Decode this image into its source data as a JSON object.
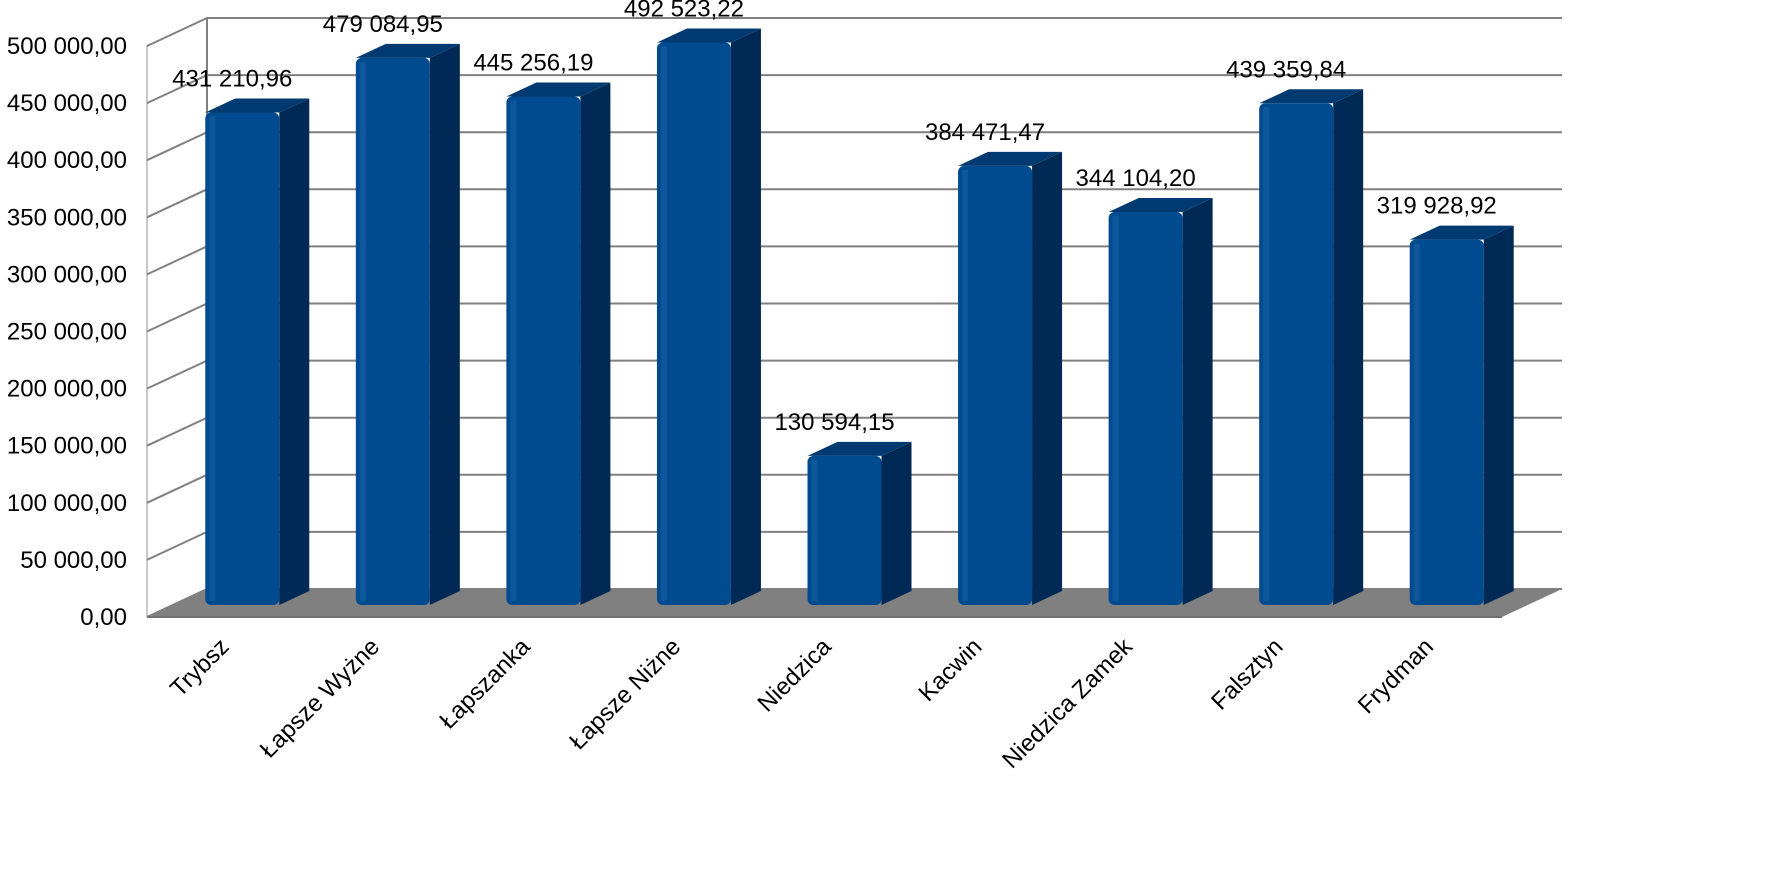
{
  "chart_data": {
    "type": "bar",
    "title": "",
    "xlabel": "",
    "ylabel": "",
    "categories": [
      "Trybsz",
      "Łapsze Wyżne",
      "Łapszanka",
      "Łapsze Niżne",
      "Niedzica",
      "Kacwin",
      "Niedzica Zamek",
      "Falsztyn",
      "Frydman"
    ],
    "values": [
      431210.96,
      479084.95,
      445256.19,
      492523.22,
      130594.15,
      384471.47,
      344104.2,
      439359.84,
      319928.92
    ],
    "value_labels": [
      "431 210,96",
      "479 084,95",
      "445 256,19",
      "492 523,22",
      "130 594,15",
      "384 471,47",
      "344 104,20",
      "439 359,84",
      "319 928,92"
    ],
    "ylim": [
      0,
      500000
    ],
    "y_ticks": [
      "0,00",
      "50 000,00",
      "100 000,00",
      "150 000,00",
      "200 000,00",
      "250 000,00",
      "300 000,00",
      "350 000,00",
      "400 000,00",
      "450 000,00",
      "500 000,00"
    ],
    "grid": true,
    "legend": "none",
    "style": "3d-column",
    "colors": {
      "bar_front": "#004a8f",
      "bar_side": "#002a55",
      "bar_top": "#003a70",
      "floor": "#808080",
      "grid": "#808080"
    }
  }
}
